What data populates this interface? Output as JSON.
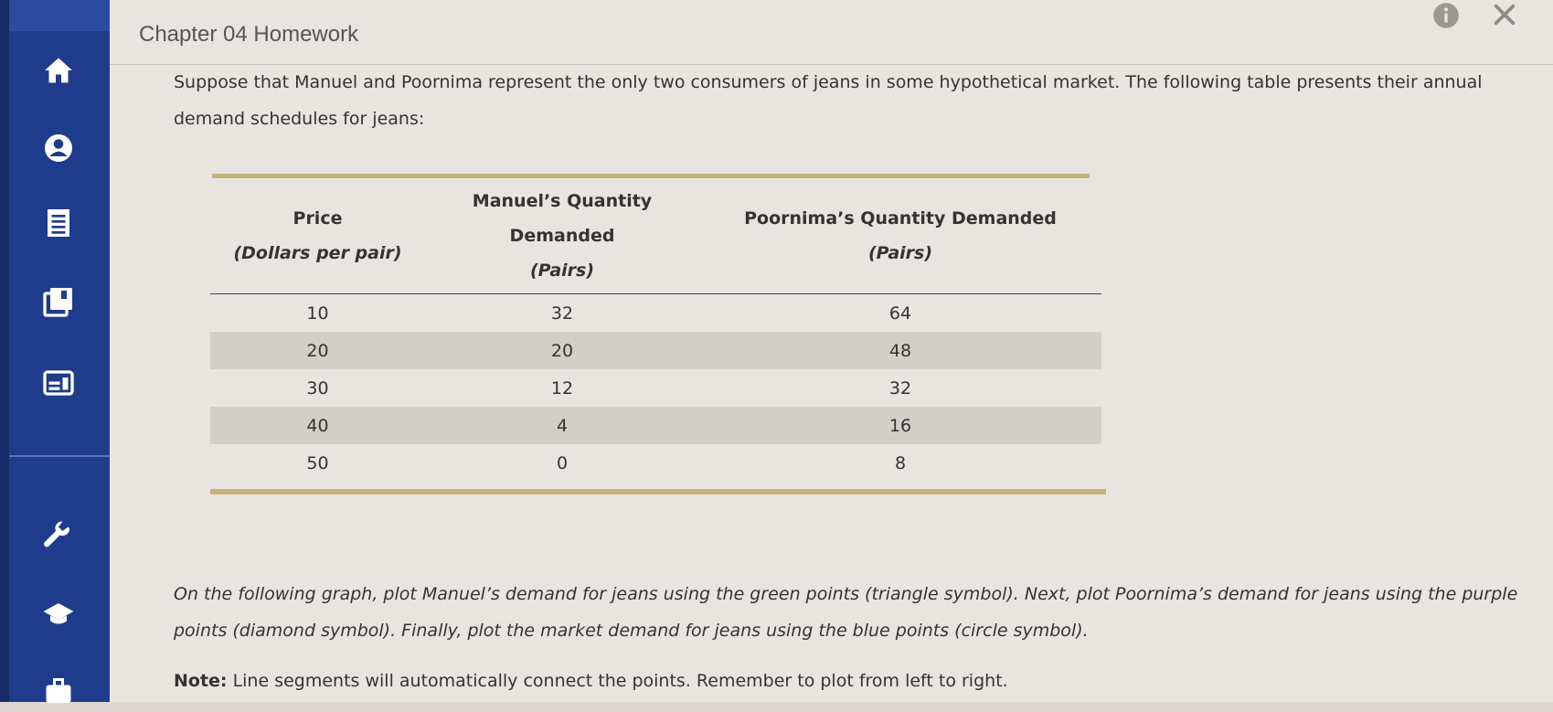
{
  "header": {
    "title": "Chapter 04 Homework"
  },
  "sidebar": {
    "icons": [
      "home-icon",
      "user-icon",
      "document-icon",
      "book-icon",
      "calendar-icon",
      "wrench-icon",
      "graduation-cap-icon",
      "briefcase-icon"
    ]
  },
  "main": {
    "intro": "Suppose that Manuel and Poornima represent the only two consumers of jeans in some hypothetical market. The following table presents their annual demand schedules for jeans:",
    "table": {
      "headers": [
        {
          "line1": "Price",
          "line2": "(Dollars per pair)"
        },
        {
          "line1": "Manuel’s Quantity Demanded",
          "line2": "(Pairs)"
        },
        {
          "line1": "Poornima’s Quantity Demanded",
          "line2": "(Pairs)"
        }
      ],
      "rows": [
        [
          "10",
          "32",
          "64"
        ],
        [
          "20",
          "20",
          "48"
        ],
        [
          "30",
          "12",
          "32"
        ],
        [
          "40",
          "4",
          "16"
        ],
        [
          "50",
          "0",
          "8"
        ]
      ]
    },
    "instruction": "On the following graph, plot Manuel’s demand for jeans using the green points (triangle symbol). Next, plot Poornima’s demand for jeans using the purple points (diamond symbol). Finally, plot the market demand for jeans using the blue points (circle symbol).",
    "note_label": "Note:",
    "note_text": " Line segments will automatically connect the points. Remember to plot from left to right."
  },
  "colors": {
    "sidebar": "#1f3c8c",
    "table_rule": "#c6b27a",
    "row_shade": "#d2cfc9"
  }
}
